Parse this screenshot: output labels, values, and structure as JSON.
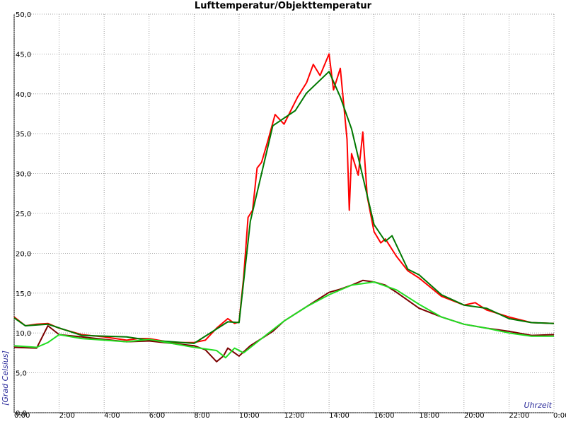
{
  "chart_data": {
    "type": "line",
    "title": "Lufttemperatur/Objekttemperatur",
    "y_label": "[Grad Celsius]",
    "x_label": "Uhrzeit",
    "xlim": [
      0,
      24
    ],
    "ylim": [
      0,
      50
    ],
    "grid": true,
    "xticks": [
      {
        "value": 0,
        "label": "0:00"
      },
      {
        "value": 2,
        "label": "2:00"
      },
      {
        "value": 4,
        "label": "4:00"
      },
      {
        "value": 6,
        "label": "6:00"
      },
      {
        "value": 8,
        "label": "8:00"
      },
      {
        "value": 10,
        "label": "10:00"
      },
      {
        "value": 12,
        "label": "12:00"
      },
      {
        "value": 14,
        "label": "14:00"
      },
      {
        "value": 16,
        "label": "16:00"
      },
      {
        "value": 18,
        "label": "18:00"
      },
      {
        "value": 20,
        "label": "20:00"
      },
      {
        "value": 22,
        "label": "22:00"
      },
      {
        "value": 24,
        "label": "0:00"
      }
    ],
    "yticks": [
      {
        "value": 0,
        "label": "0,0"
      },
      {
        "value": 5,
        "label": "5,0"
      },
      {
        "value": 10,
        "label": "10,0"
      },
      {
        "value": 15,
        "label": "15,0"
      },
      {
        "value": 20,
        "label": "20,0"
      },
      {
        "value": 25,
        "label": "25,0"
      },
      {
        "value": 30,
        "label": "30,0"
      },
      {
        "value": 35,
        "label": "35,0"
      },
      {
        "value": 40,
        "label": "40,0"
      },
      {
        "value": 45,
        "label": "45,0"
      },
      {
        "value": 50,
        "label": "50,0"
      }
    ],
    "series": [
      {
        "color": "#ff0000",
        "x": [
          0,
          0.5,
          1,
          1.5,
          2,
          3,
          4,
          5,
          5.5,
          6,
          7,
          8,
          8.5,
          9,
          9.5,
          9.8,
          10,
          10.2,
          10.4,
          10.6,
          10.8,
          11,
          11.3,
          11.6,
          12,
          12.3,
          12.6,
          13,
          13.3,
          13.6,
          14,
          14.2,
          14.5,
          14.8,
          14.9,
          15,
          15.3,
          15.5,
          15.7,
          16,
          16.3,
          16.5,
          17,
          17.5,
          18,
          19,
          20,
          20.5,
          21,
          22,
          23,
          24
        ],
        "values": [
          12.0,
          10.9,
          11.1,
          11.2,
          10.6,
          9.8,
          9.5,
          9.1,
          9.3,
          9.3,
          8.8,
          8.8,
          9.1,
          10.6,
          11.8,
          11.2,
          11.4,
          16.9,
          24.5,
          25.4,
          30.7,
          31.4,
          34.3,
          37.4,
          36.2,
          37.9,
          39.6,
          41.4,
          43.7,
          42.3,
          45.0,
          40.5,
          43.2,
          34.3,
          25.4,
          32.5,
          29.8,
          35.2,
          27.1,
          22.7,
          21.3,
          21.8,
          19.6,
          17.8,
          16.9,
          14.6,
          13.5,
          13.8,
          12.9,
          12.0,
          11.3,
          11.2
        ]
      },
      {
        "color": "#007800",
        "x": [
          0,
          0.5,
          1.5,
          3,
          5,
          6,
          8,
          9.5,
          10,
          10.5,
          11.5,
          12.5,
          13,
          14,
          14.5,
          15,
          16,
          16.5,
          16.8,
          17.5,
          18,
          19,
          20,
          21,
          22,
          23,
          24
        ],
        "values": [
          11.9,
          10.9,
          11.1,
          9.7,
          9.5,
          9.1,
          8.7,
          11.4,
          11.3,
          24.0,
          36.0,
          37.9,
          40.1,
          42.8,
          39.6,
          35.6,
          23.6,
          21.5,
          22.2,
          18.0,
          17.3,
          14.8,
          13.5,
          13.1,
          11.8,
          11.3,
          11.2
        ]
      },
      {
        "color": "#7a0000",
        "x": [
          0,
          1,
          1.5,
          2,
          3,
          4,
          5,
          6,
          7,
          8,
          8.5,
          9,
          9.3,
          9.5,
          10,
          10.5,
          11,
          11.5,
          12,
          12.5,
          13,
          13.5,
          14,
          14.5,
          15,
          15.5,
          16,
          16.5,
          17,
          18,
          19,
          20,
          21,
          22,
          23,
          24
        ],
        "values": [
          8.2,
          8.1,
          10.9,
          9.8,
          9.5,
          9.2,
          8.9,
          9.0,
          8.7,
          8.4,
          7.9,
          6.4,
          7.1,
          8.1,
          7.1,
          8.4,
          9.3,
          10.2,
          11.5,
          12.4,
          13.3,
          14.2,
          15.1,
          15.5,
          16.0,
          16.6,
          16.4,
          16.0,
          15.1,
          13.1,
          12.0,
          11.1,
          10.6,
          10.2,
          9.7,
          9.8
        ]
      },
      {
        "color": "#22dd22",
        "x": [
          0,
          1,
          1.5,
          2,
          3,
          5,
          6,
          8,
          9,
          9.4,
          9.8,
          10.2,
          11,
          12,
          13,
          14,
          15,
          16,
          17,
          18,
          19,
          20,
          21,
          22,
          23,
          24
        ],
        "values": [
          8.4,
          8.2,
          8.8,
          9.8,
          9.3,
          8.9,
          9.2,
          8.2,
          7.8,
          6.9,
          8.1,
          7.5,
          9.3,
          11.5,
          13.3,
          14.8,
          16.0,
          16.4,
          15.4,
          13.6,
          12.0,
          11.1,
          10.6,
          10.0,
          9.6,
          9.6
        ]
      }
    ]
  }
}
